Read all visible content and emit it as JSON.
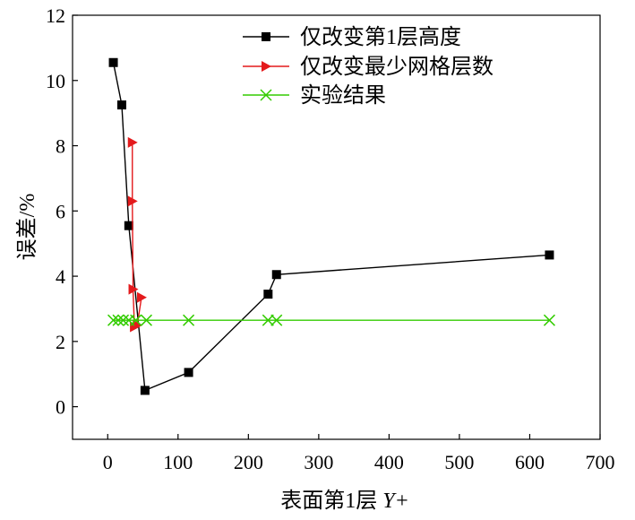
{
  "chart_data": {
    "type": "line",
    "xlabel_main": "表面第1层",
    "xlabel_var": "Y+",
    "ylabel": "误差/%",
    "xlim": [
      -50,
      700
    ],
    "ylim": [
      -1,
      12
    ],
    "xticks": [
      0,
      100,
      200,
      300,
      400,
      500,
      600,
      700
    ],
    "yticks": [
      0,
      2,
      4,
      6,
      8,
      10,
      12
    ],
    "grid": false,
    "legend_position": "top-right",
    "series": [
      {
        "name": "仅改变第1层高度",
        "color": "#000000",
        "marker": "square",
        "x": [
          8,
          20,
          30,
          53,
          115,
          228,
          240,
          628
        ],
        "y": [
          10.55,
          9.25,
          5.55,
          0.5,
          1.05,
          3.45,
          4.05,
          4.65
        ]
      },
      {
        "name": "仅改变最少网格层数",
        "color": "#e41a1c",
        "marker": "triangle-right",
        "x": [
          35,
          35,
          36,
          38,
          42,
          48
        ],
        "y": [
          8.1,
          6.3,
          3.6,
          2.45,
          2.5,
          3.35
        ]
      },
      {
        "name": "实验结果",
        "color": "#33cc00",
        "marker": "x",
        "x": [
          8,
          15,
          22,
          30,
          40,
          55,
          115,
          228,
          240,
          628
        ],
        "y": [
          2.65,
          2.65,
          2.65,
          2.65,
          2.65,
          2.65,
          2.65,
          2.65,
          2.65,
          2.65
        ]
      }
    ]
  }
}
